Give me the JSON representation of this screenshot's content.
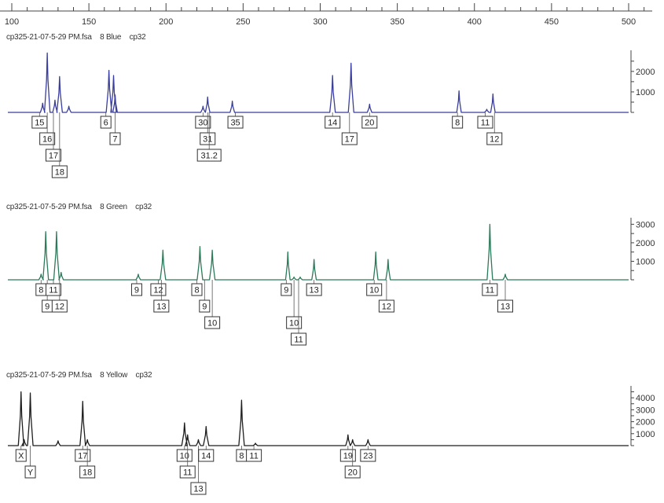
{
  "chart_data": {
    "type": "line",
    "x_axis": {
      "ticks": [
        100,
        150,
        200,
        250,
        300,
        350,
        400,
        450,
        500
      ],
      "tick_labels": [
        "100",
        "150",
        "200",
        "250",
        "300",
        "350",
        "400",
        "450",
        "500"
      ],
      "range": [
        100,
        510
      ]
    },
    "panels": [
      {
        "id": "blue",
        "header": "cp325-21-07-5-29 PM.fsa    8 Blue    cp32",
        "color": "#3a3e9c",
        "ylim": [
          0,
          2800
        ],
        "y_ticks": [
          1000,
          2000
        ],
        "y_tick_labels": [
          "1000",
          "2000"
        ],
        "peaks": [
          {
            "x": 120,
            "h": 450
          },
          {
            "x": 123,
            "h": 2900
          },
          {
            "x": 128,
            "h": 600
          },
          {
            "x": 131,
            "h": 1750
          },
          {
            "x": 137,
            "h": 300
          },
          {
            "x": 163,
            "h": 2050
          },
          {
            "x": 166,
            "h": 1800
          },
          {
            "x": 167,
            "h": 850
          },
          {
            "x": 224,
            "h": 300
          },
          {
            "x": 227,
            "h": 750
          },
          {
            "x": 243,
            "h": 550
          },
          {
            "x": 308,
            "h": 1800
          },
          {
            "x": 320,
            "h": 2400
          },
          {
            "x": 332,
            "h": 400
          },
          {
            "x": 390,
            "h": 1050
          },
          {
            "x": 408,
            "h": 150
          },
          {
            "x": 412,
            "h": 900
          }
        ],
        "allele_labels": [
          {
            "text": "15",
            "x": 118,
            "row": 0
          },
          {
            "text": "16",
            "x": 123,
            "row": 1
          },
          {
            "text": "17",
            "x": 127,
            "row": 2
          },
          {
            "text": "18",
            "x": 131,
            "row": 3
          },
          {
            "text": "6",
            "x": 161,
            "row": 0
          },
          {
            "text": "7",
            "x": 167,
            "row": 1
          },
          {
            "text": "30",
            "x": 224,
            "row": 0
          },
          {
            "text": "31",
            "x": 227,
            "row": 1
          },
          {
            "text": "31.2",
            "x": 228,
            "row": 2
          },
          {
            "text": "35",
            "x": 245,
            "row": 0
          },
          {
            "text": "14",
            "x": 308,
            "row": 0
          },
          {
            "text": "17",
            "x": 319,
            "row": 1
          },
          {
            "text": "20",
            "x": 332,
            "row": 0
          },
          {
            "text": "8",
            "x": 389,
            "row": 0
          },
          {
            "text": "11",
            "x": 407,
            "row": 0
          },
          {
            "text": "12",
            "x": 413,
            "row": 1
          }
        ]
      },
      {
        "id": "green",
        "header": "cp325-21-07-5-29 PM.fsa    8 Green    cp32",
        "color": "#2c7a5a",
        "ylim": [
          0,
          3100
        ],
        "y_ticks": [
          1000,
          2000,
          3000
        ],
        "y_tick_labels": [
          "1000",
          "2000",
          "3000"
        ],
        "peaks": [
          {
            "x": 119,
            "h": 300
          },
          {
            "x": 122,
            "h": 2600
          },
          {
            "x": 129,
            "h": 2600
          },
          {
            "x": 132,
            "h": 400
          },
          {
            "x": 182,
            "h": 300
          },
          {
            "x": 198,
            "h": 1600
          },
          {
            "x": 222,
            "h": 1800
          },
          {
            "x": 230,
            "h": 1600
          },
          {
            "x": 279,
            "h": 1500
          },
          {
            "x": 283,
            "h": 150
          },
          {
            "x": 287,
            "h": 150
          },
          {
            "x": 296,
            "h": 1100
          },
          {
            "x": 336,
            "h": 1500
          },
          {
            "x": 344,
            "h": 1100
          },
          {
            "x": 410,
            "h": 3000
          },
          {
            "x": 420,
            "h": 300
          }
        ],
        "allele_labels": [
          {
            "text": "8",
            "x": 119,
            "row": 0
          },
          {
            "text": "9",
            "x": 123,
            "row": 1
          },
          {
            "text": "11",
            "x": 127,
            "row": 0
          },
          {
            "text": "12",
            "x": 131,
            "row": 1
          },
          {
            "text": "9",
            "x": 181,
            "row": 0
          },
          {
            "text": "12",
            "x": 195,
            "row": 0
          },
          {
            "text": "13",
            "x": 197,
            "row": 1
          },
          {
            "text": "8",
            "x": 220,
            "row": 0
          },
          {
            "text": "9",
            "x": 225,
            "row": 1
          },
          {
            "text": "10",
            "x": 230,
            "row": 2
          },
          {
            "text": "9",
            "x": 278,
            "row": 0
          },
          {
            "text": "10",
            "x": 283,
            "row": 2
          },
          {
            "text": "11",
            "x": 286,
            "row": 3
          },
          {
            "text": "13",
            "x": 296,
            "row": 0
          },
          {
            "text": "10",
            "x": 335,
            "row": 0
          },
          {
            "text": "12",
            "x": 343,
            "row": 1
          },
          {
            "text": "11",
            "x": 410,
            "row": 0
          },
          {
            "text": "13",
            "x": 420,
            "row": 1
          }
        ]
      },
      {
        "id": "yellow",
        "header": "cp325-21-07-5-29 PM.fsa    8 Yellow    cp32",
        "color": "#1e1e1e",
        "ylim": [
          0,
          4600
        ],
        "y_ticks": [
          1000,
          2000,
          3000,
          4000
        ],
        "y_tick_labels": [
          "1000",
          "2000",
          "3000",
          "4000"
        ],
        "peaks": [
          {
            "x": 106,
            "h": 4500
          },
          {
            "x": 108,
            "h": 500
          },
          {
            "x": 112,
            "h": 4400
          },
          {
            "x": 130,
            "h": 400
          },
          {
            "x": 146,
            "h": 3700
          },
          {
            "x": 149,
            "h": 500
          },
          {
            "x": 212,
            "h": 1900
          },
          {
            "x": 214,
            "h": 900
          },
          {
            "x": 221,
            "h": 500
          },
          {
            "x": 226,
            "h": 1600
          },
          {
            "x": 249,
            "h": 3800
          },
          {
            "x": 258,
            "h": 200
          },
          {
            "x": 318,
            "h": 900
          },
          {
            "x": 321,
            "h": 500
          },
          {
            "x": 331,
            "h": 500
          }
        ],
        "allele_labels": [
          {
            "text": "X",
            "x": 106,
            "row": 0
          },
          {
            "text": "Y",
            "x": 112,
            "row": 1
          },
          {
            "text": "17",
            "x": 146,
            "row": 0
          },
          {
            "text": "18",
            "x": 149,
            "row": 1
          },
          {
            "text": "10",
            "x": 212,
            "row": 0
          },
          {
            "text": "11",
            "x": 214,
            "row": 1
          },
          {
            "text": "13",
            "x": 221,
            "row": 2
          },
          {
            "text": "14",
            "x": 226,
            "row": 0
          },
          {
            "text": "8",
            "x": 249,
            "row": 0
          },
          {
            "text": "11",
            "x": 257,
            "row": 0
          },
          {
            "text": "19",
            "x": 318,
            "row": 0
          },
          {
            "text": "20",
            "x": 321,
            "row": 1
          },
          {
            "text": "23",
            "x": 331,
            "row": 0
          }
        ]
      }
    ]
  }
}
